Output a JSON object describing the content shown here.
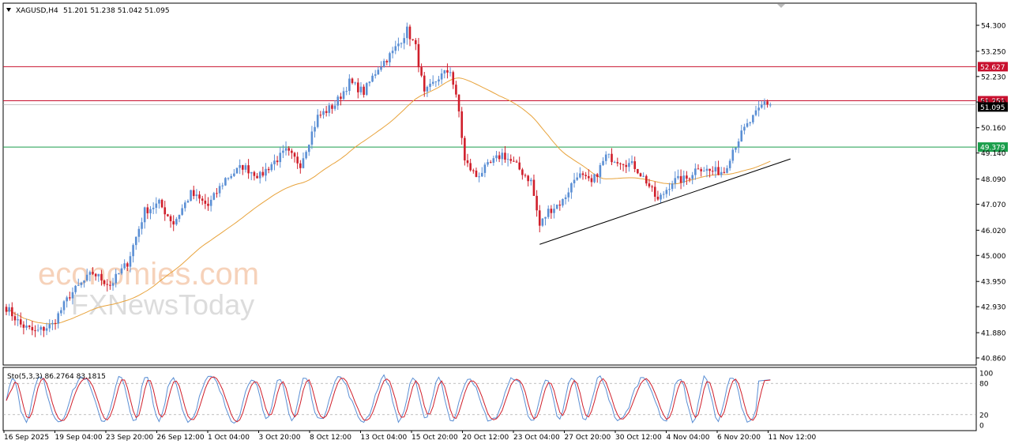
{
  "header": {
    "symbol": "XAGUSD,H4",
    "ohlc": "51.201 51.238 51.042 51.095",
    "menu_icon": "triangle-down-icon"
  },
  "watermark": {
    "line1": "economies.com",
    "line2": "FXNewsToday"
  },
  "chart_data": [
    {
      "type": "candlestick",
      "symbol": "XAGUSD",
      "timeframe": "H4",
      "ylim": [
        40.86,
        55.0
      ],
      "y_ticks": [
        "54.300",
        "53.250",
        "52.230",
        "51.200",
        "50.160",
        "49.140",
        "48.090",
        "47.070",
        "46.020",
        "45.000",
        "43.950",
        "42.930",
        "41.880",
        "40.860"
      ],
      "x_ticks": [
        "16 Sep 2025",
        "19 Sep 04:00",
        "23 Sep 20:00",
        "26 Sep 12:00",
        "1 Oct 04:00",
        "3 Oct 20:00",
        "8 Oct 12:00",
        "13 Oct 04:00",
        "15 Oct 20:00",
        "20 Oct 12:00",
        "23 Oct 04:00",
        "27 Oct 20:00",
        "30 Oct 12:00",
        "4 Nov 04:00",
        "6 Nov 20:00",
        "11 Nov 12:00"
      ],
      "close_path": [
        {
          "i": 0,
          "v": 42.9
        },
        {
          "i": 5,
          "v": 42.2
        },
        {
          "i": 10,
          "v": 41.9
        },
        {
          "i": 16,
          "v": 42.2
        },
        {
          "i": 22,
          "v": 43.4
        },
        {
          "i": 30,
          "v": 44.3
        },
        {
          "i": 36,
          "v": 43.8
        },
        {
          "i": 42,
          "v": 44.7
        },
        {
          "i": 48,
          "v": 46.8
        },
        {
          "i": 53,
          "v": 47.1
        },
        {
          "i": 58,
          "v": 46.3
        },
        {
          "i": 64,
          "v": 47.5
        },
        {
          "i": 70,
          "v": 47.0
        },
        {
          "i": 76,
          "v": 48.1
        },
        {
          "i": 82,
          "v": 48.6
        },
        {
          "i": 88,
          "v": 48.2
        },
        {
          "i": 92,
          "v": 48.7
        },
        {
          "i": 97,
          "v": 49.2
        },
        {
          "i": 102,
          "v": 48.7
        },
        {
          "i": 108,
          "v": 50.6
        },
        {
          "i": 114,
          "v": 51.1
        },
        {
          "i": 119,
          "v": 52.0
        },
        {
          "i": 124,
          "v": 51.6
        },
        {
          "i": 129,
          "v": 52.6
        },
        {
          "i": 134,
          "v": 53.2
        },
        {
          "i": 139,
          "v": 54.1
        },
        {
          "i": 142,
          "v": 53.4
        },
        {
          "i": 145,
          "v": 51.5
        },
        {
          "i": 150,
          "v": 52.2
        },
        {
          "i": 154,
          "v": 52.5
        },
        {
          "i": 157,
          "v": 50.8
        },
        {
          "i": 159,
          "v": 48.8
        },
        {
          "i": 163,
          "v": 48.2
        },
        {
          "i": 168,
          "v": 48.7
        },
        {
          "i": 172,
          "v": 49.1
        },
        {
          "i": 177,
          "v": 48.6
        },
        {
          "i": 182,
          "v": 48.0
        },
        {
          "i": 185,
          "v": 46.2
        },
        {
          "i": 188,
          "v": 46.8
        },
        {
          "i": 193,
          "v": 47.2
        },
        {
          "i": 198,
          "v": 48.3
        },
        {
          "i": 203,
          "v": 47.9
        },
        {
          "i": 208,
          "v": 49.0
        },
        {
          "i": 214,
          "v": 48.8
        },
        {
          "i": 218,
          "v": 48.6
        },
        {
          "i": 222,
          "v": 48.0
        },
        {
          "i": 226,
          "v": 47.2
        },
        {
          "i": 231,
          "v": 48.0
        },
        {
          "i": 236,
          "v": 48.1
        },
        {
          "i": 240,
          "v": 48.6
        },
        {
          "i": 244,
          "v": 48.4
        },
        {
          "i": 249,
          "v": 48.4
        },
        {
          "i": 252,
          "v": 49.3
        },
        {
          "i": 256,
          "v": 50.1
        },
        {
          "i": 260,
          "v": 50.7
        },
        {
          "i": 263,
          "v": 51.2
        },
        {
          "i": 265,
          "v": 51.095
        }
      ],
      "horizontal_levels": [
        {
          "value": 52.627,
          "label": "52.627",
          "color": "#c8102e"
        },
        {
          "value": 51.251,
          "label": "51.251",
          "color": "#c8102e"
        },
        {
          "value": 51.095,
          "label": "51.095",
          "color": "#000000"
        },
        {
          "value": 49.379,
          "label": "49.379",
          "color": "#1a9e4b"
        }
      ],
      "trendline": [
        {
          "i": 185,
          "v": 45.45
        },
        {
          "i": 272,
          "v": 48.9
        }
      ],
      "moving_average_color": "#e8a33c",
      "colors": {
        "up": "#5b8fd4",
        "down": "#d01f2b"
      }
    },
    {
      "type": "line",
      "indicator": "Sto(5,3,3) 86.2764 83.1815",
      "ylim": [
        0,
        100
      ],
      "y_ticks": [
        "100",
        "80",
        "20",
        "0"
      ],
      "levels": [
        80,
        20
      ],
      "series_colors": [
        "#5b8fd4",
        "#d01f2b"
      ]
    }
  ]
}
